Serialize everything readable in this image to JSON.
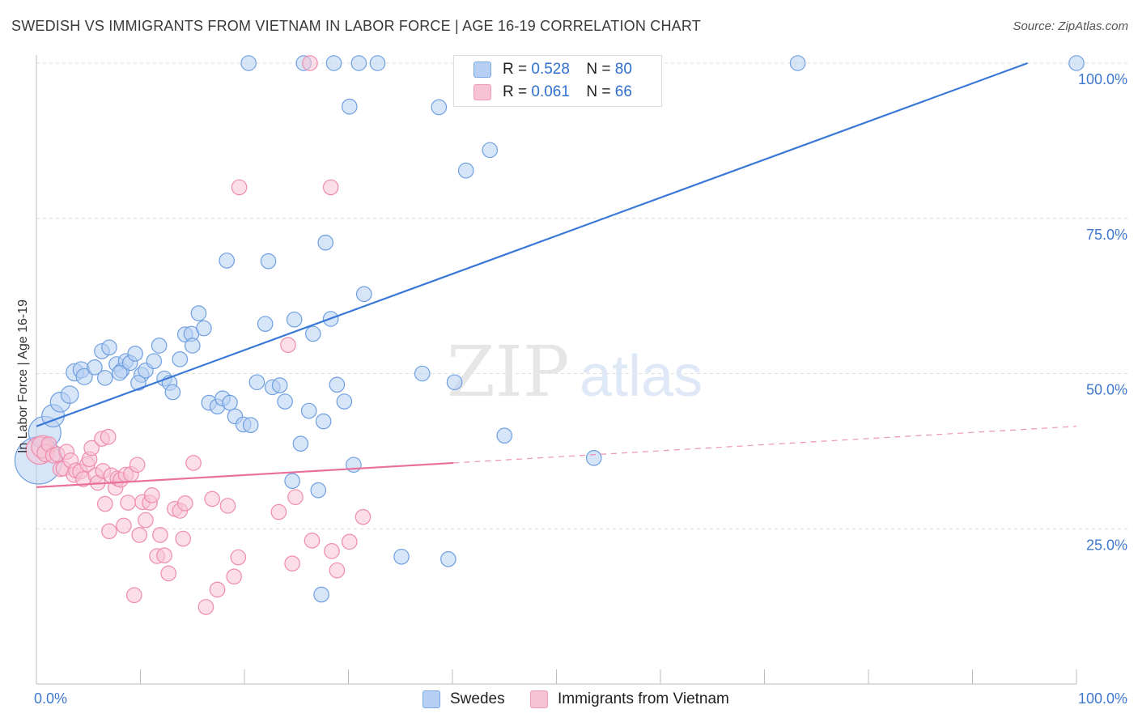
{
  "header": {
    "title": "SWEDISH VS IMMIGRANTS FROM VIETNAM IN LABOR FORCE | AGE 16-19 CORRELATION CHART",
    "source": "Source: ZipAtlas.com"
  },
  "watermark": {
    "zip": "ZIP",
    "atlas": "atlas"
  },
  "legend": {
    "r_label": "R =",
    "n_label": "N =",
    "series": [
      {
        "name": "Swedes",
        "r": "0.528",
        "n": "80",
        "color": "#7aa7e8"
      },
      {
        "name": "Immigrants from Vietnam",
        "r": "0.061",
        "n": "66",
        "color": "#f29bb8"
      }
    ]
  },
  "colors": {
    "blue_fill": "#b7cff3",
    "blue_stroke": "#6f9fe0",
    "blue_line": "#3a78d8",
    "pink_fill": "#f7c2d3",
    "pink_stroke": "#ee8cad",
    "pink_line": "#e8709a",
    "tick_text": "#3f78cf",
    "grid": "#dddddd"
  },
  "chart_data": {
    "type": "scatter",
    "title": "SWEDISH VS IMMIGRANTS FROM VIETNAM IN LABOR FORCE | AGE 16-19 CORRELATION CHART",
    "xlabel": "",
    "ylabel": "In Labor Force | Age 16-19",
    "xlim": [
      0,
      100
    ],
    "ylim": [
      0,
      100
    ],
    "x_tick_labels": [
      "0.0%",
      "100.0%"
    ],
    "y_ticks": [
      25,
      50,
      75,
      100
    ],
    "y_tick_labels": [
      "25.0%",
      "50.0%",
      "75.0%",
      "100.0%"
    ],
    "grid": "horizontal dashed",
    "legend_position": "top-center",
    "series": [
      {
        "name": "Swedes",
        "r": 0.528,
        "n": 80,
        "trend": {
          "x": [
            0,
            95.3
          ],
          "y": [
            41.5,
            100
          ],
          "style": "solid"
        },
        "points": [
          [
            0.2,
            36,
            38
          ],
          [
            0.8,
            40.5,
            26
          ],
          [
            1.6,
            43.2,
            18
          ],
          [
            2.3,
            45.4,
            16
          ],
          [
            3.2,
            46.6,
            14
          ],
          [
            3.7,
            50.2,
            14
          ],
          [
            4.3,
            50.6,
            13
          ],
          [
            4.6,
            49.5,
            13
          ],
          [
            5.6,
            51,
            12
          ],
          [
            6.3,
            53.6,
            12
          ],
          [
            6.6,
            49.3,
            12
          ],
          [
            7.0,
            54.2,
            12
          ],
          [
            7.7,
            51.5,
            12
          ],
          [
            8.2,
            50.5,
            12
          ],
          [
            8.6,
            52,
            12
          ],
          [
            9.0,
            51.7,
            12
          ],
          [
            9.5,
            53.2,
            12
          ],
          [
            10.1,
            49.8,
            12
          ],
          [
            10.5,
            50.5,
            12
          ],
          [
            11.3,
            52,
            12
          ],
          [
            11.8,
            54.5,
            12
          ],
          [
            12.3,
            49.2,
            12
          ],
          [
            12.8,
            48.5,
            12
          ],
          [
            13.1,
            47,
            12
          ],
          [
            13.8,
            52.3,
            12
          ],
          [
            14.3,
            56.3,
            12
          ],
          [
            14.9,
            56.4,
            12
          ],
          [
            15.6,
            59.7,
            12
          ],
          [
            16.1,
            57.3,
            12
          ],
          [
            16.6,
            45.3,
            12
          ],
          [
            17.4,
            44.7,
            12
          ],
          [
            17.9,
            46,
            12
          ],
          [
            18.6,
            45.3,
            12
          ],
          [
            19.1,
            43.1,
            12
          ],
          [
            19.9,
            41.8,
            12
          ],
          [
            20.6,
            41.7,
            12
          ],
          [
            21.2,
            48.6,
            12
          ],
          [
            22.0,
            58,
            12
          ],
          [
            22.7,
            47.8,
            12
          ],
          [
            23.4,
            48.1,
            12
          ],
          [
            23.9,
            45.5,
            12
          ],
          [
            24.8,
            58.7,
            12
          ],
          [
            25.4,
            38.7,
            12
          ],
          [
            26.2,
            44,
            12
          ],
          [
            26.6,
            56.4,
            12
          ],
          [
            27.1,
            31.2,
            12
          ],
          [
            27.6,
            42.3,
            12
          ],
          [
            28.3,
            58.8,
            12
          ],
          [
            28.9,
            48.2,
            12
          ],
          [
            29.6,
            45.5,
            12
          ],
          [
            30.5,
            35.3,
            12
          ],
          [
            31.5,
            62.8,
            12
          ],
          [
            32.8,
            100,
            12
          ],
          [
            35.1,
            20.5,
            12
          ],
          [
            37.1,
            50,
            12
          ],
          [
            38.7,
            92.9,
            12
          ],
          [
            39.6,
            20.1,
            12
          ],
          [
            40.2,
            48.6,
            12
          ],
          [
            41.3,
            82.7,
            12
          ],
          [
            42.3,
            100,
            12
          ],
          [
            43.6,
            86,
            12
          ],
          [
            45.0,
            40,
            12
          ],
          [
            47.9,
            100,
            12
          ],
          [
            53.6,
            36.4,
            12
          ],
          [
            57.3,
            100,
            12
          ],
          [
            73.2,
            100,
            12
          ],
          [
            100,
            100,
            12
          ],
          [
            18.3,
            68.2,
            12
          ],
          [
            22.3,
            68.1,
            12
          ],
          [
            27.8,
            71.1,
            12
          ],
          [
            30.1,
            93,
            12
          ],
          [
            25.7,
            100,
            12
          ],
          [
            24.6,
            32.7,
            12
          ],
          [
            27.4,
            14.4,
            12
          ],
          [
            31.0,
            100,
            12
          ],
          [
            8.0,
            50.1,
            12
          ],
          [
            15.0,
            54.5,
            12
          ],
          [
            20.4,
            100,
            12
          ],
          [
            28.6,
            100,
            12
          ],
          [
            9.8,
            48.5,
            12
          ]
        ]
      },
      {
        "name": "Immigrants from Vietnam",
        "r": 0.061,
        "n": 66,
        "trend": {
          "x": [
            0,
            40.1
          ],
          "y": [
            31.7,
            35.6
          ],
          "style": "solid",
          "extension": {
            "x": [
              40.1,
              100
            ],
            "y": [
              35.6,
              41.5
            ],
            "style": "dashed"
          }
        },
        "points": [
          [
            0.3,
            37.6,
            22
          ],
          [
            0.6,
            38.2,
            18
          ],
          [
            0.9,
            37.2,
            14
          ],
          [
            1.2,
            38.6,
            12
          ],
          [
            1.6,
            36.8,
            12
          ],
          [
            2.0,
            37,
            12
          ],
          [
            2.3,
            34.6,
            12
          ],
          [
            2.6,
            34.7,
            12
          ],
          [
            2.9,
            37.4,
            12
          ],
          [
            3.3,
            36,
            12
          ],
          [
            3.6,
            33.7,
            12
          ],
          [
            3.8,
            34.4,
            12
          ],
          [
            4.2,
            34.2,
            12
          ],
          [
            4.5,
            33,
            12
          ],
          [
            4.9,
            35.4,
            12
          ],
          [
            5.1,
            36.2,
            12
          ],
          [
            5.3,
            38,
            12
          ],
          [
            5.7,
            33.6,
            12
          ],
          [
            5.9,
            32.4,
            12
          ],
          [
            6.3,
            39.5,
            12
          ],
          [
            6.4,
            34.3,
            12
          ],
          [
            6.6,
            29,
            12
          ],
          [
            6.9,
            39.8,
            12
          ],
          [
            7.0,
            24.6,
            12
          ],
          [
            7.2,
            33.6,
            12
          ],
          [
            7.6,
            31.6,
            12
          ],
          [
            7.8,
            33.1,
            12
          ],
          [
            8.1,
            32.9,
            12
          ],
          [
            8.4,
            25.5,
            12
          ],
          [
            8.6,
            33.7,
            12
          ],
          [
            8.8,
            29.2,
            12
          ],
          [
            9.1,
            33.8,
            12
          ],
          [
            9.4,
            14.3,
            12
          ],
          [
            9.7,
            35.3,
            12
          ],
          [
            9.9,
            24,
            12
          ],
          [
            10.2,
            29.3,
            12
          ],
          [
            10.5,
            26.4,
            12
          ],
          [
            10.9,
            29.2,
            12
          ],
          [
            11.1,
            30.4,
            12
          ],
          [
            11.6,
            20.6,
            12
          ],
          [
            11.9,
            24,
            12
          ],
          [
            12.3,
            20.7,
            12
          ],
          [
            12.7,
            17.8,
            12
          ],
          [
            13.3,
            28.2,
            12
          ],
          [
            13.8,
            27.9,
            12
          ],
          [
            14.1,
            23.4,
            12
          ],
          [
            14.3,
            29.1,
            12
          ],
          [
            15.1,
            35.6,
            12
          ],
          [
            16.3,
            12.4,
            12
          ],
          [
            16.9,
            29.8,
            12
          ],
          [
            17.4,
            15.2,
            12
          ],
          [
            18.4,
            28.7,
            12
          ],
          [
            19.0,
            17.3,
            12
          ],
          [
            19.4,
            20.4,
            12
          ],
          [
            23.3,
            27.7,
            12
          ],
          [
            24.2,
            54.6,
            12
          ],
          [
            24.6,
            19.4,
            12
          ],
          [
            24.9,
            30.1,
            12
          ],
          [
            26.5,
            23.1,
            12
          ],
          [
            28.4,
            21.4,
            12
          ],
          [
            28.9,
            18.3,
            12
          ],
          [
            30.1,
            22.9,
            12
          ],
          [
            31.4,
            26.9,
            12
          ],
          [
            19.5,
            80,
            12
          ],
          [
            28.3,
            80,
            12
          ],
          [
            26.3,
            100,
            12
          ]
        ]
      }
    ]
  }
}
